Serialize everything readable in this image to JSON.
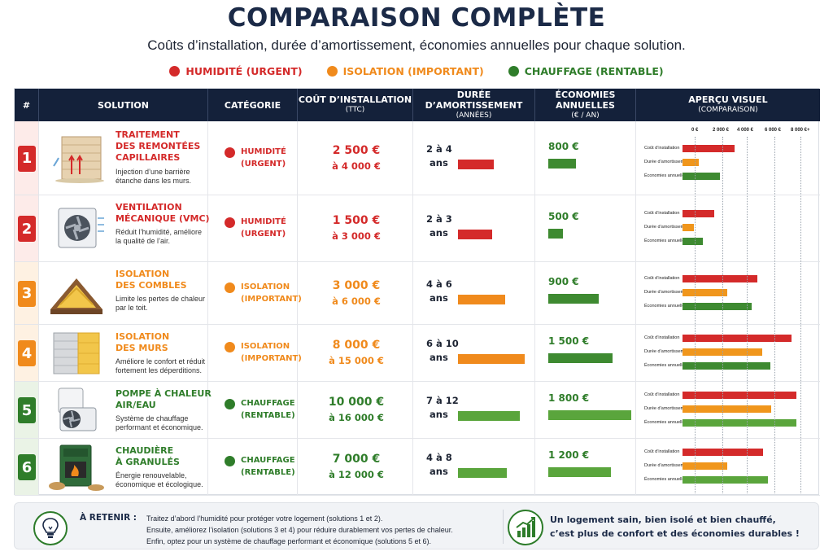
{
  "title": "COMPARAISON COMPLÈTE",
  "subtitle": "Coûts d’installation, durée d’amortissement, économies annuelles pour chaque solution.",
  "legend": [
    {
      "label": "HUMIDITÉ (URGENT)",
      "color": "#d42a2a"
    },
    {
      "label": "ISOLATION (IMPORTANT)",
      "color": "#f08a1c"
    },
    {
      "label": "CHAUFFAGE (RENTABLE)",
      "color": "#2f7d2a"
    }
  ],
  "headers": {
    "num": "#",
    "solution": "SOLUTION",
    "categorie": "CATÉGORIE",
    "cout": "COÛT D’INSTALLATION",
    "cout_sub": "(TTC)",
    "duree": "DURÉE D’AMORTISSEMENT",
    "duree_sub": "(ANNÉES)",
    "eco": "ÉCONOMIES ANNUELLES",
    "eco_sub": "(€ / AN)",
    "apercu": "APERÇU VISUEL",
    "apercu_sub": "(COMPARAISON)"
  },
  "axis_ticks": [
    "0 €",
    "2 000 €",
    "4 000 €",
    "6 000 €",
    "8 000 €+"
  ],
  "visual_labels": [
    "Coût d’installation",
    "Durée d’amortissement",
    "Économies annuelles"
  ],
  "rows": [
    {
      "num": "1",
      "title": "TRAITEMENT\nDES REMONTÉES\nCAPILLAIRES",
      "desc": "Injection d’une barrière\nétanche dans les murs.",
      "cat": "HUMIDITÉ\n(URGENT)",
      "color": "#d42a2a",
      "tint": "#fdebe9",
      "cost1": "2 500 €",
      "cost2": "à 4 000 €",
      "dur1": "2 à 4",
      "dur2": "ans",
      "eco": "800 €",
      "illus": "wall-moisture-icon",
      "bars": {
        "cost": 0.46,
        "duree": 0.14,
        "eco": 0.33
      },
      "bar_colors": [
        "#d42a2a",
        "#f0961c",
        "#3e8a31"
      ]
    },
    {
      "num": "2",
      "title": "VENTILATION\nMÉCANIQUE (VMC)",
      "desc": "Réduit l’humidité, améliore\nla qualité de l’air.",
      "cat": "HUMIDITÉ\n(URGENT)",
      "color": "#d42a2a",
      "tint": "#fdebe9",
      "cost1": "1 500 €",
      "cost2": "à 3 000 €",
      "dur1": "2 à 3",
      "dur2": "ans",
      "eco": "500 €",
      "illus": "ventilation-fan-icon",
      "bars": {
        "cost": 0.28,
        "duree": 0.1,
        "eco": 0.18
      },
      "bar_colors": [
        "#d42a2a",
        "#f0961c",
        "#3e8a31"
      ]
    },
    {
      "num": "3",
      "title": "ISOLATION\nDES COMBLES",
      "desc": "Limite les pertes de chaleur\npar le toit.",
      "cat": "ISOLATION\n(IMPORTANT)",
      "color": "#f08a1c",
      "tint": "#fef1e2",
      "cost1": "3 000 €",
      "cost2": "à 6 000 €",
      "dur1": "4 à 6",
      "dur2": "ans",
      "eco": "900 €",
      "illus": "attic-insulation-icon",
      "bars": {
        "cost": 0.66,
        "duree": 0.39,
        "eco": 0.61
      },
      "bar_colors": [
        "#d42a2a",
        "#f0961c",
        "#3e8a31"
      ]
    },
    {
      "num": "4",
      "title": "ISOLATION\nDES MURS",
      "desc": "Améliore le confort et réduit\nfortement les déperditions.",
      "cat": "ISOLATION\n(IMPORTANT)",
      "color": "#f08a1c",
      "tint": "#fef1e2",
      "cost1": "8 000 €",
      "cost2": "à 15 000 €",
      "dur1": "6 à 10",
      "dur2": "ans",
      "eco": "1 500 €",
      "illus": "wall-insulation-icon",
      "bars": {
        "cost": 0.96,
        "duree": 0.7,
        "eco": 0.77
      },
      "bar_colors": [
        "#d42a2a",
        "#f0961c",
        "#3e8a31"
      ]
    },
    {
      "num": "5",
      "title": "POMPE À CHALEUR\nAIR/EAU",
      "desc": "Système de chauffage\nperformant et économique.",
      "cat": "CHAUFFAGE\n(RENTABLE)",
      "color": "#2f7d2a",
      "tint": "#eaf3e6",
      "cost1": "10 000 €",
      "cost2": "à 16 000 €",
      "dur1": "7 à 12",
      "dur2": "ans",
      "eco": "1 800 €",
      "illus": "heat-pump-icon",
      "bars": {
        "cost": 1.0,
        "duree": 0.78,
        "eco": 1.0
      },
      "bar_colors": [
        "#d42a2a",
        "#f0961c",
        "#3e8a31"
      ]
    },
    {
      "num": "6",
      "title": "CHAUDIÈRE\nÀ GRANULÉS",
      "desc": "Énergie renouvelable,\néconomique et écologique.",
      "cat": "CHAUFFAGE\n(RENTABLE)",
      "color": "#2f7d2a",
      "tint": "#eaf3e6",
      "cost1": "7 000 €",
      "cost2": "à 12 000 €",
      "dur1": "4 à 8",
      "dur2": "ans",
      "eco": "1 200 €",
      "illus": "pellet-boiler-icon",
      "bars": {
        "cost": 0.71,
        "duree": 0.39,
        "eco": 0.75
      },
      "bar_colors": [
        "#d42a2a",
        "#f0961c",
        "#3e8a31"
      ]
    }
  ],
  "footer": {
    "retenir": "À RETENIR :",
    "lines": [
      "Traitez d’abord l’humidité pour protéger votre logement (solutions 1 et 2).",
      "Ensuite, améliorez l’isolation (solutions 3 et 4) pour réduire durablement vos pertes de chaleur.",
      "Enfin, optez pour un système de chauffage performant et économique (solutions 5 et 6)."
    ],
    "message1": "Un logement sain, bien isolé et bien chauffé,",
    "message2": "c’est plus de confort et des économies durables !"
  }
}
